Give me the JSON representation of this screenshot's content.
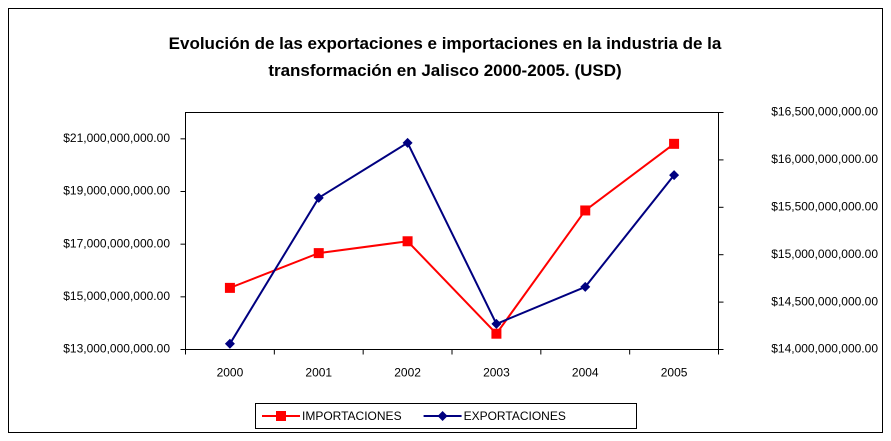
{
  "chart_data": {
    "type": "line",
    "title": "Evolución de las exportaciones e importaciones en la industria de la transformación en Jalisco 2000-2005. (USD)",
    "categories": [
      "2000",
      "2001",
      "2002",
      "2003",
      "2004",
      "2005"
    ],
    "series": [
      {
        "name": "IMPORTACIONES",
        "color": "#ff0000",
        "marker": "square",
        "values": [
          15340000000,
          16660000000,
          17110000000,
          13600000000,
          18280000000,
          20810000000
        ]
      },
      {
        "name": "EXPORTACIONES",
        "color": "#000080",
        "marker": "diamond",
        "axis": "y2",
        "values": [
          14060000000,
          15600000000,
          16180000000,
          14270000000,
          14660000000,
          15840000000
        ]
      }
    ],
    "ylim": [
      13000000000,
      22000000000
    ],
    "yticks": [
      {
        "value": 13000000000,
        "label": "$13,000,000,000.00"
      },
      {
        "value": 15000000000,
        "label": "$15,000,000,000.00"
      },
      {
        "value": 17000000000,
        "label": "$17,000,000,000.00"
      },
      {
        "value": 19000000000,
        "label": "$19,000,000,000.00"
      },
      {
        "value": 21000000000,
        "label": "$21,000,000,000.00"
      }
    ],
    "y2lim": [
      14000000000,
      16500000000
    ],
    "y2ticks": [
      {
        "value": 14000000000,
        "label": "$14,000,000,000.00"
      },
      {
        "value": 14500000000,
        "label": "$14,500,000,000.00"
      },
      {
        "value": 15000000000,
        "label": "$15,000,000,000.00"
      },
      {
        "value": 15500000000,
        "label": "$15,500,000,000.00"
      },
      {
        "value": 16000000000,
        "label": "$16,000,000,000.00"
      },
      {
        "value": 16500000000,
        "label": "$16,500,000,000.00"
      }
    ],
    "grid": false,
    "legend": "bottom"
  }
}
